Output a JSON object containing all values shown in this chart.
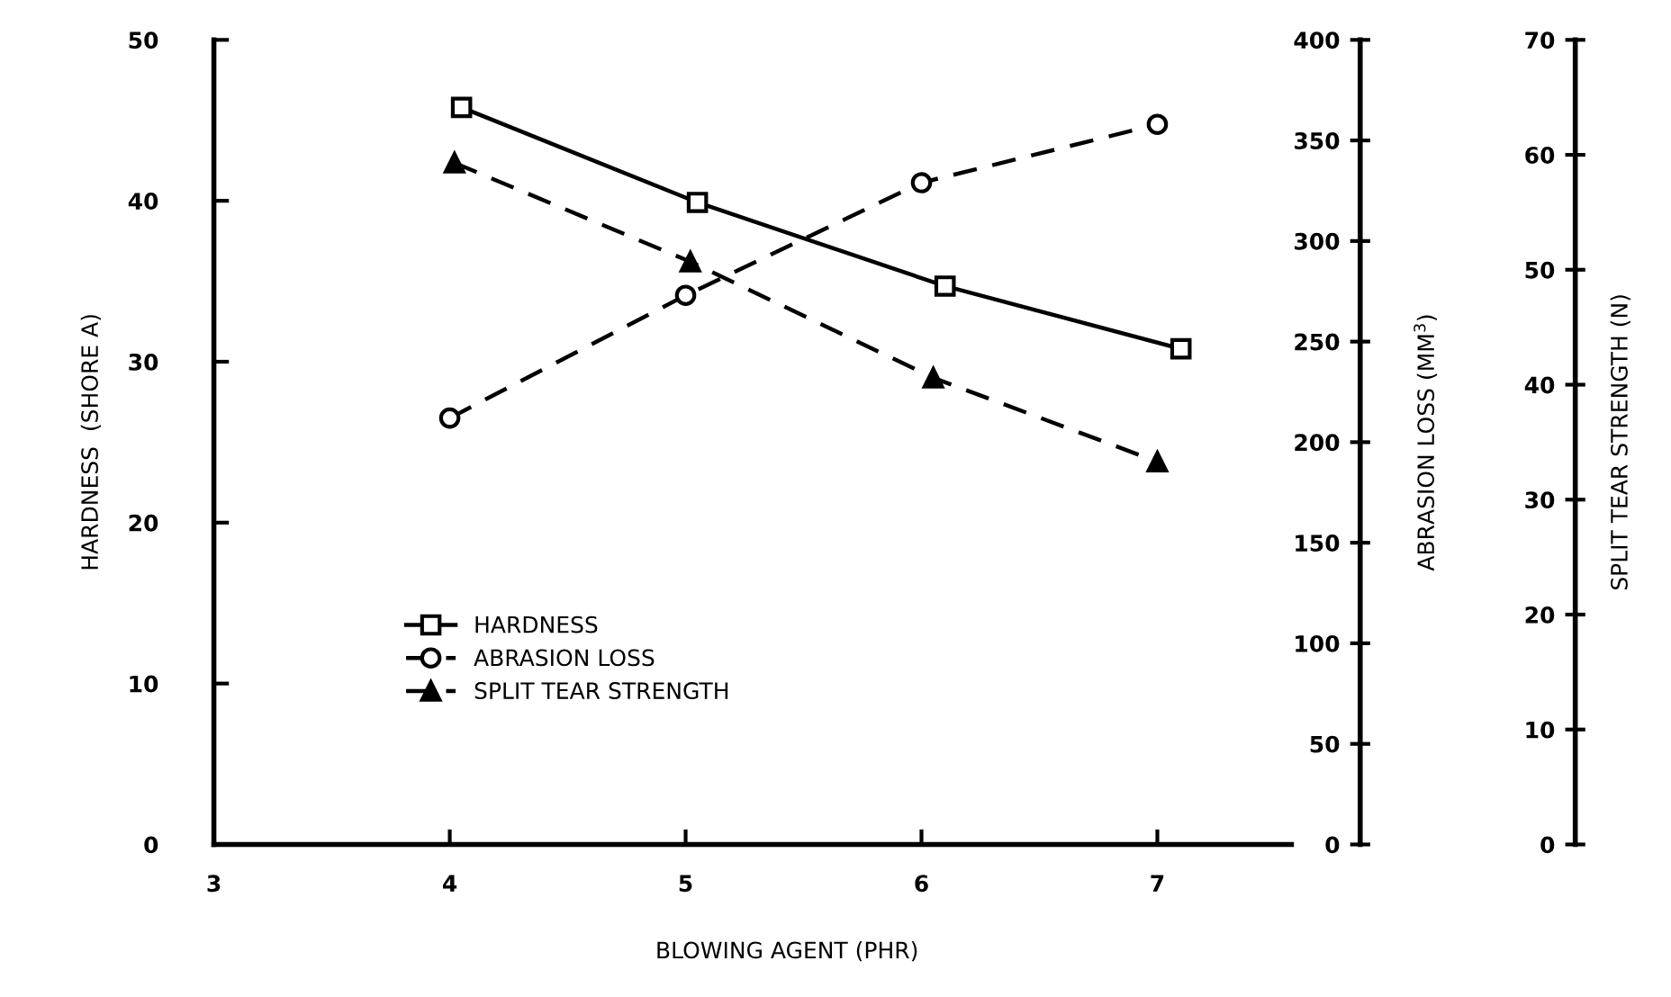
{
  "chart_data": {
    "type": "line",
    "xlabel": "BLOWING AGENT (PHR)",
    "ylabel": "HARDNESS  (SHORE A)",
    "y2label": "ABRASION LOSS (MM$^{3}$)",
    "y3label": "SPLIT TEAR STRENGTH (N)",
    "xlim": [
      3,
      7.86
    ],
    "xticks": [
      3,
      4,
      5,
      6,
      7
    ],
    "ylim": [
      0,
      50
    ],
    "yticks": [
      0,
      10,
      20,
      30,
      40,
      50
    ],
    "y2lim": [
      0,
      400
    ],
    "y2ticks": [
      0,
      50,
      100,
      150,
      200,
      250,
      300,
      350,
      400
    ],
    "y3lim": [
      0,
      70
    ],
    "y3ticks": [
      0,
      10,
      20,
      30,
      40,
      50,
      60,
      70
    ],
    "grid": false,
    "legend": "lower left",
    "series": [
      {
        "name": "HARDNESS",
        "color": "#000000",
        "x": [
          4.05,
          5.05,
          6.1,
          7.1
        ],
        "values": [
          45.8,
          39.9,
          34.7,
          30.8
        ],
        "marker": "square",
        "line_style": "solid"
      },
      {
        "name": "ABRASION LOSS",
        "color": "#000000",
        "x": [
          4.0,
          5.0,
          6.0,
          7.0
        ],
        "values": [
          212,
          273,
          329,
          358
        ],
        "marker": "circle",
        "line_style": "dashed",
        "axis": "y2"
      },
      {
        "name": "SPLIT TEAR STRENGTH",
        "color": "#000000",
        "x": [
          4.02,
          5.02,
          6.05,
          7.0
        ],
        "values": [
          59.3,
          50.7,
          40.6,
          33.3
        ],
        "marker": "triangle",
        "line_style": "dashed",
        "axis": "y3"
      }
    ]
  }
}
